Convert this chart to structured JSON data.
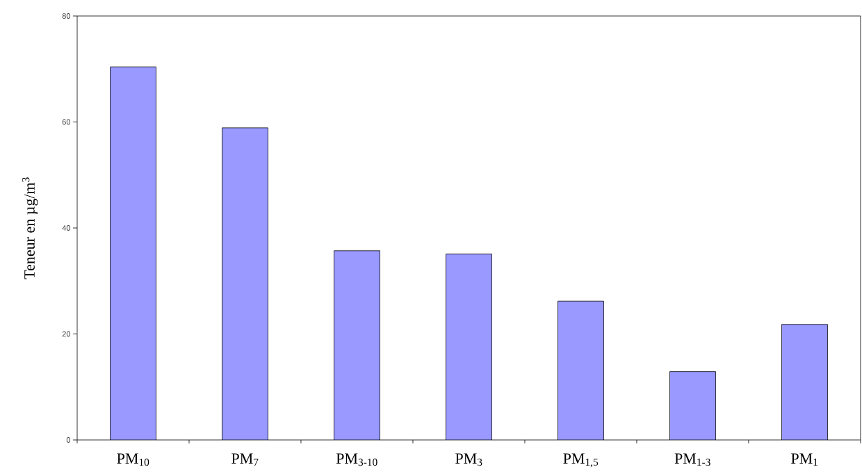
{
  "chart_data": {
    "type": "bar",
    "ylabel": "Teneur en µg/m$^{3}$",
    "categories": [
      "PM$_{10}$",
      "PM$_{7}$",
      "PM$_{3-10}$",
      "PM$_{3}$",
      "PM$_{1,5}$",
      "PM$_{1-3}$",
      "PM$_{1}$"
    ],
    "values": [
      70.4,
      58.9,
      35.7,
      35.1,
      26.2,
      12.9,
      21.8
    ],
    "color": "#9999ff",
    "ylim": [
      0,
      80
    ],
    "yticks": [
      0,
      20,
      40,
      60,
      80
    ],
    "grid": false
  }
}
